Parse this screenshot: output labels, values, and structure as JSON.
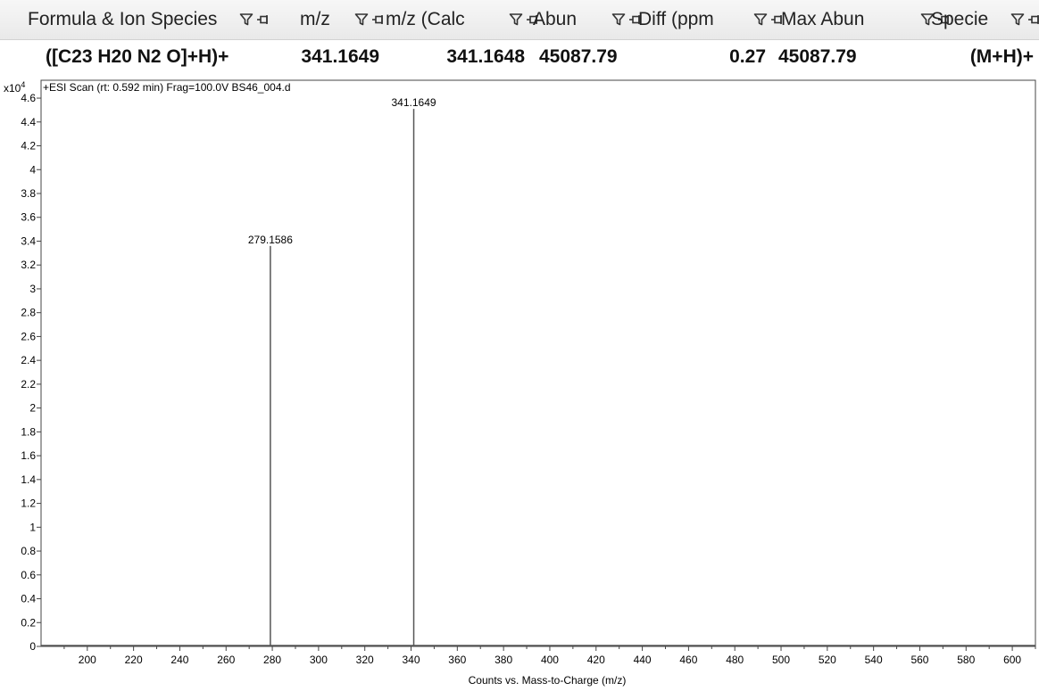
{
  "table": {
    "columns": [
      {
        "key": "formula",
        "label": "Formula & Ion Species"
      },
      {
        "key": "mz",
        "label": "m/z"
      },
      {
        "key": "mz_calc",
        "label": "m/z (Calc"
      },
      {
        "key": "abun",
        "label": "Abun"
      },
      {
        "key": "diff",
        "label": "Diff (ppm"
      },
      {
        "key": "max_abun",
        "label": "Max Abun"
      },
      {
        "key": "species",
        "label": "Specie"
      }
    ],
    "row": {
      "formula": "([C23 H20 N2 O]+H)+",
      "mz": "341.1649",
      "mz_calc": "341.1648",
      "abun": "45087.79",
      "diff": "0.27",
      "max_abun": "45087.79",
      "species": "(M+H)+"
    },
    "icons": {
      "filter": "filter-funnel-icon",
      "pin": "pin-icon"
    }
  },
  "chart_data": {
    "type": "bar",
    "scan_title": "+ESI Scan (rt: 0.592 min) Frag=100.0V BS46_004.d",
    "ylabel_multiplier": "x10",
    "ylabel_exponent": "4",
    "xlabel": "Counts vs. Mass-to-Charge (m/z)",
    "xlim": [
      180,
      610
    ],
    "ylim": [
      0,
      4.75
    ],
    "x_ticks": [
      200,
      220,
      240,
      260,
      280,
      300,
      320,
      340,
      360,
      380,
      400,
      420,
      440,
      460,
      480,
      500,
      520,
      540,
      560,
      580,
      600
    ],
    "y_ticks": [
      0,
      0.2,
      0.4,
      0.6,
      0.8,
      1,
      1.2,
      1.4,
      1.6,
      1.8,
      2,
      2.2,
      2.4,
      2.6,
      2.8,
      3,
      3.2,
      3.4,
      3.6,
      3.8,
      4,
      4.2,
      4.4,
      4.6
    ],
    "peaks": [
      {
        "x": 279.1586,
        "y": 3.36,
        "label": "279.1586"
      },
      {
        "x": 341.1649,
        "y": 4.51,
        "label": "341.1649"
      }
    ],
    "grid": false,
    "line_color": "#555555"
  }
}
